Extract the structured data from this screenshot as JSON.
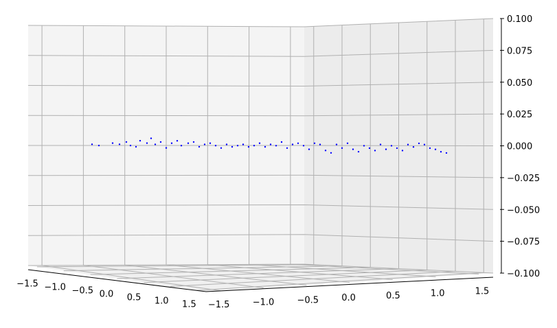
{
  "chart_data": {
    "type": "scatter",
    "title": "",
    "xlabel": "",
    "ylabel": "",
    "zlabel": "",
    "grid": true,
    "marker_color": "#0000ff",
    "x_ticks": [
      "−1.5",
      "−1.0",
      "−0.5",
      "0.0",
      "0.5",
      "1.0",
      "1.5"
    ],
    "y_ticks": [
      "−1.5",
      "−1.0",
      "−0.5",
      "0.0",
      "0.5",
      "1.0",
      "1.5"
    ],
    "z_ticks": [
      "−0.100",
      "−0.075",
      "−0.050",
      "−0.025",
      "0.000",
      "0.025",
      "0.050",
      "0.075",
      "0.100"
    ],
    "xlim": [
      -1.5,
      1.5
    ],
    "ylim": [
      -1.5,
      1.5
    ],
    "zlim": [
      -0.1,
      0.1
    ],
    "series": [
      {
        "points": [
          [
            -1.2,
            0.0,
            0.001
          ],
          [
            -1.15,
            0.0,
            0.0
          ],
          [
            -1.05,
            0.0,
            0.002
          ],
          [
            -1.0,
            0.0,
            0.001
          ],
          [
            -0.95,
            0.0,
            0.003
          ],
          [
            -0.92,
            0.0,
            0.0
          ],
          [
            -0.88,
            0.0,
            -0.001
          ],
          [
            -0.85,
            0.0,
            0.004
          ],
          [
            -0.8,
            0.0,
            0.002
          ],
          [
            -0.77,
            0.0,
            0.006
          ],
          [
            -0.74,
            0.0,
            0.001
          ],
          [
            -0.7,
            0.0,
            0.003
          ],
          [
            -0.66,
            0.0,
            -0.002
          ],
          [
            -0.62,
            0.0,
            0.002
          ],
          [
            -0.58,
            0.0,
            0.004
          ],
          [
            -0.55,
            0.0,
            0.0
          ],
          [
            -0.5,
            0.0,
            0.002
          ],
          [
            -0.46,
            0.0,
            0.003
          ],
          [
            -0.42,
            0.0,
            -0.001
          ],
          [
            -0.38,
            0.0,
            0.001
          ],
          [
            -0.34,
            0.0,
            0.002
          ],
          [
            -0.3,
            0.0,
            0.0
          ],
          [
            -0.26,
            0.0,
            -0.002
          ],
          [
            -0.22,
            0.0,
            0.001
          ],
          [
            -0.18,
            0.0,
            -0.001
          ],
          [
            -0.14,
            0.0,
            0.0
          ],
          [
            -0.1,
            0.0,
            0.001
          ],
          [
            -0.06,
            0.0,
            -0.001
          ],
          [
            -0.02,
            0.0,
            0.0
          ],
          [
            0.02,
            0.0,
            0.002
          ],
          [
            0.06,
            0.0,
            -0.001
          ],
          [
            0.1,
            0.0,
            0.001
          ],
          [
            0.14,
            0.0,
            0.0
          ],
          [
            0.18,
            0.0,
            0.003
          ],
          [
            0.22,
            0.0,
            -0.002
          ],
          [
            0.26,
            0.0,
            0.001
          ],
          [
            0.3,
            0.0,
            0.002
          ],
          [
            0.34,
            0.0,
            0.0
          ],
          [
            0.38,
            0.0,
            -0.003
          ],
          [
            0.42,
            0.0,
            0.002
          ],
          [
            0.46,
            0.0,
            0.001
          ],
          [
            0.5,
            0.0,
            -0.004
          ],
          [
            0.54,
            0.0,
            -0.006
          ],
          [
            0.58,
            0.0,
            0.001
          ],
          [
            0.62,
            0.0,
            -0.002
          ],
          [
            0.66,
            0.0,
            0.002
          ],
          [
            0.7,
            0.0,
            -0.003
          ],
          [
            0.74,
            0.0,
            -0.005
          ],
          [
            0.78,
            0.0,
            0.0
          ],
          [
            0.82,
            0.0,
            -0.002
          ],
          [
            0.86,
            0.0,
            -0.004
          ],
          [
            0.9,
            0.0,
            0.001
          ],
          [
            0.94,
            0.0,
            -0.003
          ],
          [
            0.98,
            0.0,
            0.0
          ],
          [
            1.02,
            0.0,
            -0.002
          ],
          [
            1.06,
            0.0,
            -0.004
          ],
          [
            1.1,
            0.0,
            0.001
          ],
          [
            1.14,
            0.0,
            -0.001
          ],
          [
            1.18,
            0.0,
            0.002
          ],
          [
            1.22,
            0.0,
            0.001
          ],
          [
            1.26,
            0.0,
            -0.002
          ],
          [
            1.3,
            0.0,
            -0.003
          ],
          [
            1.34,
            0.0,
            -0.005
          ],
          [
            1.38,
            0.0,
            -0.006
          ]
        ]
      }
    ]
  }
}
